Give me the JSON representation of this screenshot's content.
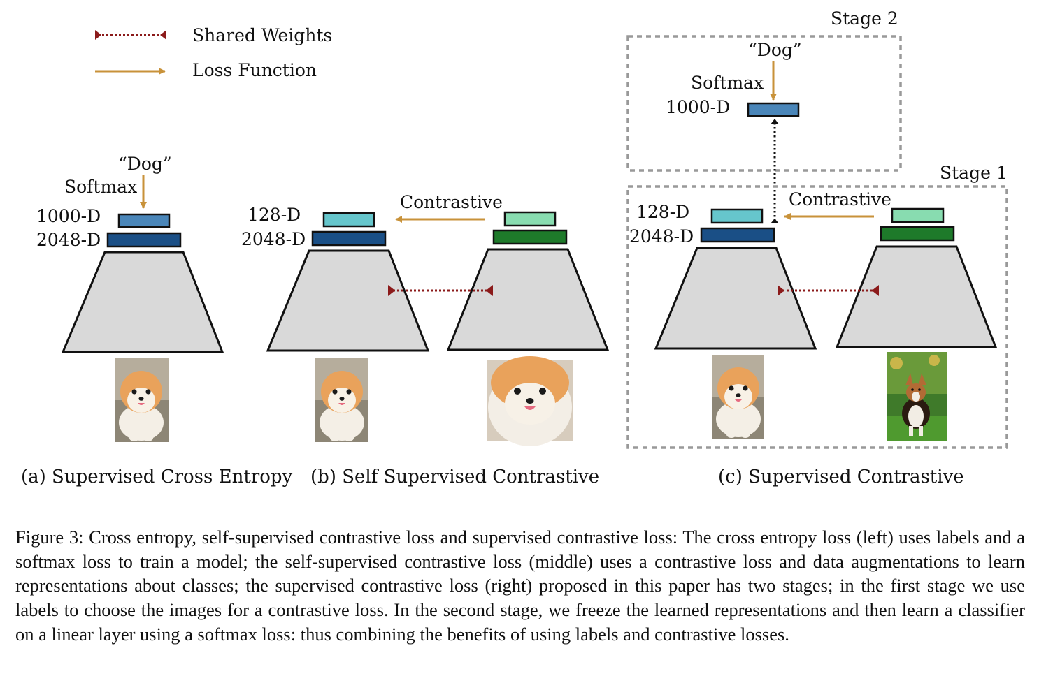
{
  "colors": {
    "shared_weights": "#8b1a1a",
    "loss_arrow": "#c8923a",
    "encoder_fill": "#d9d9d9",
    "stage_border": "#999999",
    "layer_1000d": "#4a86b9",
    "layer_2048d_dark": "#1a4f86",
    "layer_128d_teal": "#66c6cc",
    "layer_128d_mint": "#88dcb0",
    "layer_2048d_green": "#1e7a2a"
  },
  "legend": {
    "shared_weights": "Shared Weights",
    "loss_function": "Loss Function"
  },
  "panel_a": {
    "label_dog": "“Dog”",
    "label_softmax": "Softmax",
    "label_1000d": "1000-D",
    "label_2048d": "2048-D",
    "caption": "(a) Supervised Cross Entropy"
  },
  "panel_b": {
    "label_contrastive": "Contrastive",
    "label_128d": "128-D",
    "label_2048d": "2048-D",
    "caption": "(b) Self Supervised Contrastive"
  },
  "panel_c": {
    "stage1": "Stage 1",
    "stage2": "Stage 2",
    "label_dog": "“Dog”",
    "label_softmax": "Softmax",
    "label_1000d": "1000-D",
    "label_128d": "128-D",
    "label_2048d": "2048-D",
    "label_contrastive": "Contrastive",
    "caption": "(c) Supervised Contrastive"
  },
  "caption": "Figure 3: Cross entropy, self-supervised contrastive loss and supervised contrastive loss: The cross entropy loss (left) uses labels and a softmax loss to train a model; the self-supervised contrastive loss (middle) uses a contrastive loss and data augmentations to learn representations about classes; the supervised contrastive loss (right) proposed in this paper has two stages; in the first stage we use labels to choose the images for a contrastive loss. In the second stage, we freeze the learned representations and then learn a classifier on a linear layer using a softmax loss: thus combining the benefits of using labels and contrastive losses."
}
